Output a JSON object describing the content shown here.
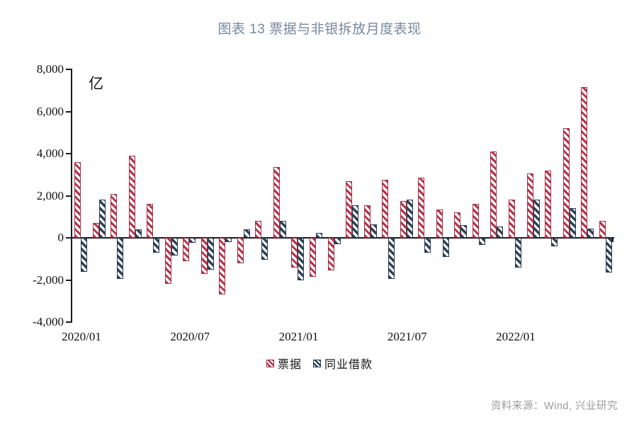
{
  "title": "图表 13 票据与非银拆放月度表现",
  "unit_label": "亿",
  "source_note": "资料来源：Wind, 兴业研究",
  "legend": {
    "items": [
      {
        "label": "票据",
        "color": "#b23349"
      },
      {
        "label": "同业借款",
        "color": "#2e4157"
      }
    ]
  },
  "colors": {
    "title": "#76879e",
    "series_piaoju": "#b23349",
    "series_tongye_jiekuan": "#2e4157",
    "axis": "#1a1a1a",
    "source_text": "#9b9b9b",
    "background": "#ffffff"
  },
  "chart_data": {
    "type": "bar",
    "title": "图表 13 票据与非银拆放月度表现",
    "unit": "亿",
    "categories": [
      "2020/01",
      "2020/02",
      "2020/03",
      "2020/04",
      "2020/05",
      "2020/06",
      "2020/07",
      "2020/08",
      "2020/09",
      "2020/10",
      "2020/11",
      "2020/12",
      "2021/01",
      "2021/02",
      "2021/03",
      "2021/04",
      "2021/05",
      "2021/06",
      "2021/07",
      "2021/08",
      "2021/09",
      "2021/10",
      "2021/11",
      "2021/12",
      "2022/01",
      "2022/02",
      "2022/03",
      "2022/04",
      "2022/05",
      "2022/06"
    ],
    "series": [
      {
        "name": "票据",
        "color": "#b23349",
        "values": [
          3600,
          700,
          2100,
          3900,
          1600,
          -2200,
          -1100,
          -1700,
          -2700,
          -1200,
          800,
          3350,
          -1400,
          -1850,
          -1550,
          2700,
          1550,
          2750,
          1750,
          2850,
          1350,
          1200,
          1600,
          4100,
          1800,
          3050,
          3200,
          5200,
          7150,
          800
        ]
      },
      {
        "name": "同业借款",
        "color": "#2e4157",
        "values": [
          -1600,
          1800,
          -1950,
          400,
          -700,
          -850,
          -250,
          -1500,
          -200,
          400,
          -1050,
          800,
          -2000,
          250,
          -300,
          1550,
          650,
          -1950,
          1800,
          -700,
          -900,
          600,
          -350,
          550,
          -1400,
          1800,
          -400,
          1400,
          450,
          -1650
        ]
      }
    ],
    "ylim": [
      -4000,
      8000
    ],
    "ytick_step": 2000,
    "ytick_labels": [
      "8,000",
      "6,000",
      "4,000",
      "2,000",
      "0",
      "-2,000",
      "-4,000"
    ],
    "xtick_labels": [
      "2020/01",
      "2020/07",
      "2021/01",
      "2021/07",
      "2022/01"
    ],
    "xtick_month_indices": [
      0,
      6,
      12,
      18,
      24
    ],
    "grid": false,
    "legend_position": "bottom"
  }
}
